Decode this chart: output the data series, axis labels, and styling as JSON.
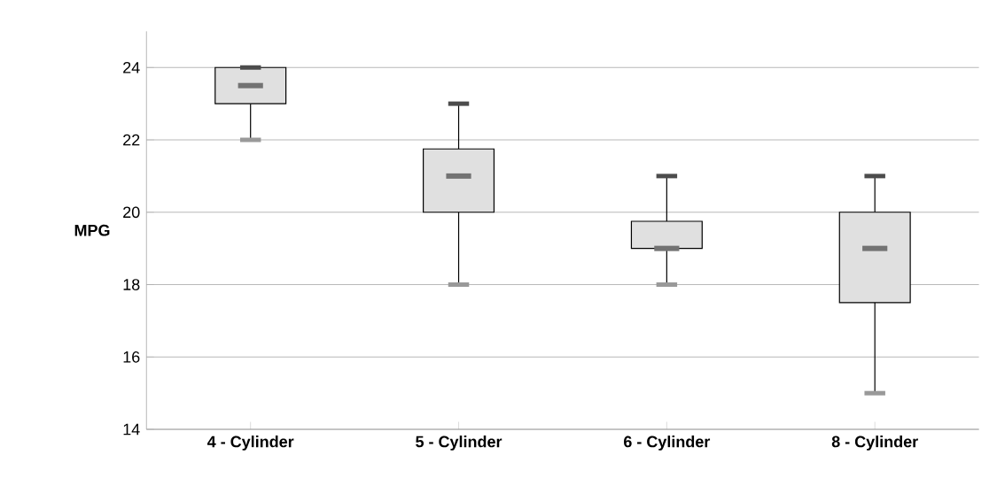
{
  "chart_data": {
    "type": "box",
    "ylabel": "MPG",
    "categories": [
      "4 - Cylinder",
      "5 - Cylinder",
      "6 - Cylinder",
      "8 - Cylinder"
    ],
    "boxes": [
      {
        "low": 22,
        "q1": 23,
        "median": 23.5,
        "q3": 24,
        "high": 24
      },
      {
        "low": 18,
        "q1": 20,
        "median": 21,
        "q3": 21.75,
        "high": 23
      },
      {
        "low": 18,
        "q1": 19,
        "median": 19,
        "q3": 19.75,
        "high": 21
      },
      {
        "low": 15,
        "q1": 17.5,
        "median": 19,
        "q3": 20,
        "high": 21
      }
    ],
    "color": "#e0e0e0",
    "ylim": [
      14,
      25
    ],
    "yticks": [
      14,
      16,
      18,
      20,
      22,
      24
    ],
    "grid": "y"
  }
}
